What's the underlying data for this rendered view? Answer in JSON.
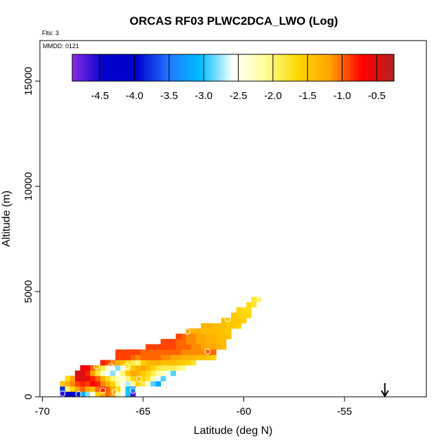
{
  "chart_data": {
    "type": "heatmap",
    "title": "ORCAS RF03 PLWC2DCA_LWO (Log)",
    "annotations": {
      "flights": "Flts: 3",
      "date": "MMDD: 0121"
    },
    "xlabel": "Latitude (deg N)",
    "ylabel": "Altitude (m)",
    "xlim": [
      -70,
      -51
    ],
    "ylim": [
      0,
      17000
    ],
    "x_ticks": [
      -70,
      -65,
      -60,
      -55
    ],
    "x_tick_labels": [
      "-70",
      "-65",
      "-60",
      "-55"
    ],
    "y_ticks": [
      0,
      5000,
      10000,
      15000
    ],
    "y_tick_labels": [
      "0",
      "5000",
      "10000",
      "15000"
    ],
    "cell_size": {
      "lat": 0.25,
      "alt": 250
    },
    "colorbar": {
      "range": [
        -4.9,
        -0.25
      ],
      "ticks": [
        -4.5,
        -4.0,
        -3.5,
        -3.0,
        -2.5,
        -2.0,
        -1.5,
        -1.0,
        -0.5
      ],
      "tick_labels": [
        "-4.5",
        "-4.0",
        "-3.5",
        "-3.0",
        "-2.5",
        "-2.0",
        "-1.5",
        "-1.0",
        "-0.5"
      ],
      "colors": [
        "#8a2be2",
        "#0000cd",
        "#0000cd",
        "#1e78ff",
        "#00bfff",
        "#ffffff",
        "#ffff99",
        "#ffd700",
        "#ffa500",
        "#ff0000",
        "#b22222"
      ]
    },
    "cells": [
      [
        -69.0,
        125,
        -4.6
      ],
      [
        -68.75,
        125,
        -4.4
      ],
      [
        -68.5,
        125,
        -4.3
      ],
      [
        -68.25,
        125,
        -3.9
      ],
      [
        -68.0,
        125,
        -3.2
      ],
      [
        -67.75,
        125,
        -2.8
      ],
      [
        -67.5,
        125,
        -2.4
      ],
      [
        -67.25,
        125,
        -1.6
      ],
      [
        -67.0,
        125,
        -1.2
      ],
      [
        -66.75,
        125,
        -1.0
      ],
      [
        -66.5,
        125,
        -1.2
      ],
      [
        -66.25,
        125,
        -2.2
      ],
      [
        -66.0,
        125,
        -2.6
      ],
      [
        -65.75,
        125,
        -3.0
      ],
      [
        -65.5,
        125,
        -4.7
      ],
      [
        -69.0,
        375,
        -3.8
      ],
      [
        -68.75,
        375,
        -2.0
      ],
      [
        -68.5,
        375,
        -1.6
      ],
      [
        -68.25,
        375,
        -1.2
      ],
      [
        -68.0,
        375,
        -1.0
      ],
      [
        -67.75,
        375,
        -1.2
      ],
      [
        -67.5,
        375,
        -1.4
      ],
      [
        -67.25,
        375,
        -1.0
      ],
      [
        -67.0,
        375,
        -0.8
      ],
      [
        -66.75,
        375,
        -1.0
      ],
      [
        -66.5,
        375,
        -1.3
      ],
      [
        -66.25,
        375,
        -1.7
      ],
      [
        -66.0,
        375,
        -2.4
      ],
      [
        -65.75,
        375,
        -3.0
      ],
      [
        -65.5,
        375,
        -3.4
      ],
      [
        -69.0,
        625,
        -1.5
      ],
      [
        -68.75,
        625,
        -1.3
      ],
      [
        -68.5,
        625,
        -1.1
      ],
      [
        -68.25,
        625,
        -0.9
      ],
      [
        -68.0,
        625,
        -0.8
      ],
      [
        -67.75,
        625,
        -0.9
      ],
      [
        -67.5,
        625,
        -0.7
      ],
      [
        -67.25,
        625,
        -0.8
      ],
      [
        -67.0,
        625,
        -1.1
      ],
      [
        -66.75,
        625,
        -1.3
      ],
      [
        -66.5,
        625,
        -1.6
      ],
      [
        -66.25,
        625,
        -2.1
      ],
      [
        -66.0,
        625,
        -2.5
      ],
      [
        -65.75,
        625,
        -2.7
      ],
      [
        -65.5,
        625,
        -2.1
      ],
      [
        -65.25,
        625,
        -1.6
      ],
      [
        -65.0,
        625,
        -1.9
      ],
      [
        -64.75,
        625,
        -2.4
      ],
      [
        -64.5,
        625,
        -2.9
      ],
      [
        -64.25,
        625,
        -3.2
      ],
      [
        -68.75,
        875,
        -1.7
      ],
      [
        -68.5,
        875,
        -1.2
      ],
      [
        -68.25,
        875,
        -0.6
      ],
      [
        -68.0,
        875,
        -0.5
      ],
      [
        -67.75,
        875,
        -0.6
      ],
      [
        -67.5,
        875,
        -0.8
      ],
      [
        -67.25,
        875,
        -1.0
      ],
      [
        -67.0,
        875,
        -1.3
      ],
      [
        -66.75,
        875,
        -1.7
      ],
      [
        -66.5,
        875,
        -2.0
      ],
      [
        -66.25,
        875,
        -2.2
      ],
      [
        -66.0,
        875,
        -2.4
      ],
      [
        -65.75,
        875,
        -2.0
      ],
      [
        -65.5,
        875,
        -1.6
      ],
      [
        -65.25,
        875,
        -1.4
      ],
      [
        -65.0,
        875,
        -1.6
      ],
      [
        -64.75,
        875,
        -1.8
      ],
      [
        -64.5,
        875,
        -2.2
      ],
      [
        -64.25,
        875,
        -2.6
      ],
      [
        -64.0,
        875,
        -2.9
      ],
      [
        -68.25,
        1125,
        -0.5
      ],
      [
        -68.0,
        1125,
        -0.5
      ],
      [
        -67.75,
        1125,
        -0.8
      ],
      [
        -67.5,
        1125,
        -1.2
      ],
      [
        -67.25,
        1125,
        -1.8
      ],
      [
        -67.0,
        1125,
        -2.3
      ],
      [
        -66.75,
        1125,
        -2.6
      ],
      [
        -66.5,
        1125,
        -2.8
      ],
      [
        -66.25,
        1125,
        -2.5
      ],
      [
        -66.0,
        1125,
        -2.0
      ],
      [
        -65.75,
        1125,
        -1.5
      ],
      [
        -65.5,
        1125,
        -1.2
      ],
      [
        -65.25,
        1125,
        -1.3
      ],
      [
        -65.0,
        1125,
        -1.5
      ],
      [
        -64.75,
        1125,
        -1.7
      ],
      [
        -64.5,
        1125,
        -1.9
      ],
      [
        -64.25,
        1125,
        -2.1
      ],
      [
        -64.0,
        1125,
        -2.3
      ],
      [
        -63.75,
        1125,
        -2.6
      ],
      [
        -63.5,
        1125,
        -2.9
      ],
      [
        -68.0,
        1375,
        -0.6
      ],
      [
        -67.75,
        1375,
        -0.7
      ],
      [
        -67.5,
        1375,
        -1.0
      ],
      [
        -67.25,
        1375,
        -1.4
      ],
      [
        -67.0,
        1375,
        -1.9
      ],
      [
        -66.75,
        1375,
        -2.3
      ],
      [
        -66.5,
        1375,
        -2.6
      ],
      [
        -66.25,
        1375,
        -2.8
      ],
      [
        -66.0,
        1375,
        -2.4
      ],
      [
        -65.75,
        1375,
        -1.9
      ],
      [
        -65.5,
        1375,
        -1.5
      ],
      [
        -65.25,
        1375,
        -1.3
      ],
      [
        -65.0,
        1375,
        -1.2
      ],
      [
        -64.75,
        1375,
        -1.4
      ],
      [
        -64.5,
        1375,
        -1.6
      ],
      [
        -64.25,
        1375,
        -1.8
      ],
      [
        -64.0,
        1375,
        -1.9
      ],
      [
        -63.75,
        1375,
        -1.9
      ],
      [
        -63.5,
        1375,
        -1.9
      ],
      [
        -63.25,
        1375,
        -2.0
      ],
      [
        -63.0,
        1375,
        -2.1
      ],
      [
        -67.0,
        1625,
        -0.8
      ],
      [
        -66.75,
        1625,
        -0.9
      ],
      [
        -66.5,
        1625,
        -1.1
      ],
      [
        -66.25,
        1625,
        -1.3
      ],
      [
        -66.0,
        1625,
        -1.5
      ],
      [
        -65.75,
        1625,
        -1.7
      ],
      [
        -65.5,
        1625,
        -1.9
      ],
      [
        -65.25,
        1625,
        -2.0
      ],
      [
        -65.0,
        1625,
        -1.6
      ],
      [
        -64.75,
        1625,
        -1.4
      ],
      [
        -64.5,
        1625,
        -1.3
      ],
      [
        -64.25,
        1625,
        -1.3
      ],
      [
        -64.0,
        1625,
        -1.4
      ],
      [
        -63.75,
        1625,
        -1.4
      ],
      [
        -63.5,
        1625,
        -1.4
      ],
      [
        -63.25,
        1625,
        -1.5
      ],
      [
        -63.0,
        1625,
        -1.5
      ],
      [
        -62.75,
        1625,
        -1.6
      ],
      [
        -62.5,
        1625,
        -1.8
      ],
      [
        -66.25,
        1875,
        -0.9
      ],
      [
        -66.0,
        1875,
        -0.9
      ],
      [
        -65.75,
        1875,
        -0.9
      ],
      [
        -65.5,
        1875,
        -1.0
      ],
      [
        -65.25,
        1875,
        -1.1
      ],
      [
        -65.0,
        1875,
        -1.0
      ],
      [
        -64.75,
        1875,
        -1.0
      ],
      [
        -64.5,
        1875,
        -1.0
      ],
      [
        -64.25,
        1875,
        -1.0
      ],
      [
        -64.0,
        1875,
        -1.1
      ],
      [
        -63.75,
        1875,
        -1.1
      ],
      [
        -63.5,
        1875,
        -1.2
      ],
      [
        -63.25,
        1875,
        -1.2
      ],
      [
        -63.0,
        1875,
        -1.3
      ],
      [
        -62.75,
        1875,
        -1.3
      ],
      [
        -62.5,
        1875,
        -1.3
      ],
      [
        -62.25,
        1875,
        -1.4
      ],
      [
        -62.0,
        1875,
        -1.4
      ],
      [
        -61.75,
        1875,
        -1.5
      ],
      [
        -61.5,
        1875,
        -1.6
      ],
      [
        -66.25,
        2125,
        -0.9
      ],
      [
        -66.0,
        2125,
        -0.9
      ],
      [
        -65.75,
        2125,
        -0.9
      ],
      [
        -65.5,
        2125,
        -0.9
      ],
      [
        -65.25,
        2125,
        -0.9
      ],
      [
        -65.0,
        2125,
        -1.0
      ],
      [
        -64.75,
        2125,
        -1.0
      ],
      [
        -64.5,
        2125,
        -1.0
      ],
      [
        -64.25,
        2125,
        -1.0
      ],
      [
        -64.0,
        2125,
        -1.0
      ],
      [
        -63.75,
        2125,
        -1.0
      ],
      [
        -63.5,
        2125,
        -1.0
      ],
      [
        -63.25,
        2125,
        -1.0
      ],
      [
        -63.0,
        2125,
        -1.1
      ],
      [
        -62.75,
        2125,
        -1.1
      ],
      [
        -62.5,
        2125,
        -1.1
      ],
      [
        -62.25,
        2125,
        -1.1
      ],
      [
        -62.0,
        2125,
        -1.1
      ],
      [
        -61.75,
        2125,
        -1.0
      ],
      [
        -61.5,
        2125,
        -1.0
      ],
      [
        -64.75,
        2375,
        -0.9
      ],
      [
        -64.5,
        2375,
        -0.9
      ],
      [
        -64.25,
        2375,
        -0.9
      ],
      [
        -64.0,
        2375,
        -0.9
      ],
      [
        -63.75,
        2375,
        -0.9
      ],
      [
        -63.5,
        2375,
        -0.9
      ],
      [
        -63.25,
        2375,
        -1.0
      ],
      [
        -63.0,
        2375,
        -1.0
      ],
      [
        -62.75,
        2375,
        -1.0
      ],
      [
        -62.5,
        2375,
        -1.1
      ],
      [
        -62.25,
        2375,
        -1.1
      ],
      [
        -62.0,
        2375,
        -1.2
      ],
      [
        -61.75,
        2375,
        -1.2
      ],
      [
        -61.5,
        2375,
        -1.2
      ],
      [
        -61.25,
        2375,
        -1.3
      ],
      [
        -61.0,
        2375,
        -1.4
      ],
      [
        -64.0,
        2625,
        -0.9
      ],
      [
        -63.75,
        2625,
        -0.9
      ],
      [
        -63.5,
        2625,
        -0.9
      ],
      [
        -63.25,
        2625,
        -1.0
      ],
      [
        -63.0,
        2625,
        -1.0
      ],
      [
        -62.75,
        2625,
        -1.1
      ],
      [
        -62.5,
        2625,
        -1.1
      ],
      [
        -62.25,
        2625,
        -1.2
      ],
      [
        -62.0,
        2625,
        -1.2
      ],
      [
        -61.75,
        2625,
        -1.3
      ],
      [
        -61.5,
        2625,
        -1.3
      ],
      [
        -61.25,
        2625,
        -1.4
      ],
      [
        -61.0,
        2625,
        -1.4
      ],
      [
        -63.25,
        2875,
        -0.9
      ],
      [
        -63.0,
        2875,
        -1.0
      ],
      [
        -62.75,
        2875,
        -1.1
      ],
      [
        -62.5,
        2875,
        -1.1
      ],
      [
        -62.25,
        2875,
        -1.2
      ],
      [
        -62.0,
        2875,
        -1.2
      ],
      [
        -61.75,
        2875,
        -1.3
      ],
      [
        -61.5,
        2875,
        -1.3
      ],
      [
        -61.25,
        2875,
        -1.4
      ],
      [
        -61.0,
        2875,
        -1.4
      ],
      [
        -60.75,
        2875,
        -1.5
      ],
      [
        -62.75,
        3125,
        -1.2
      ],
      [
        -62.5,
        3125,
        -1.3
      ],
      [
        -62.25,
        3125,
        -1.3
      ],
      [
        -62.0,
        3125,
        -1.4
      ],
      [
        -61.75,
        3125,
        -1.4
      ],
      [
        -61.5,
        3125,
        -1.4
      ],
      [
        -61.25,
        3125,
        -1.4
      ],
      [
        -61.0,
        3125,
        -1.5
      ],
      [
        -60.75,
        3125,
        -1.5
      ],
      [
        -62.0,
        3375,
        -1.3
      ],
      [
        -61.75,
        3375,
        -1.3
      ],
      [
        -61.5,
        3375,
        -1.4
      ],
      [
        -61.25,
        3375,
        -1.4
      ],
      [
        -61.0,
        3375,
        -1.4
      ],
      [
        -60.75,
        3375,
        -1.5
      ],
      [
        -60.5,
        3375,
        -1.5
      ],
      [
        -60.25,
        3375,
        -1.6
      ],
      [
        -61.0,
        3625,
        -1.4
      ],
      [
        -60.75,
        3625,
        -1.5
      ],
      [
        -60.5,
        3625,
        -1.5
      ],
      [
        -60.25,
        3625,
        -1.5
      ],
      [
        -60.0,
        3625,
        -1.6
      ],
      [
        -60.5,
        3875,
        -1.5
      ],
      [
        -60.25,
        3875,
        -1.6
      ],
      [
        -60.0,
        3875,
        -1.6
      ],
      [
        -59.75,
        3875,
        -1.7
      ],
      [
        -60.25,
        4125,
        -1.6
      ],
      [
        -60.0,
        4125,
        -1.7
      ],
      [
        -59.75,
        4125,
        -1.7
      ],
      [
        -59.75,
        4375,
        -1.7
      ],
      [
        -59.5,
        4375,
        -1.8
      ],
      [
        -59.5,
        4625,
        -1.8
      ],
      [
        -59.25,
        4625,
        -2.0
      ]
    ],
    "markers": [
      [
        -69.0,
        150
      ],
      [
        -68.2,
        120
      ],
      [
        -67.0,
        300
      ],
      [
        -66.4,
        230
      ],
      [
        -65.5,
        300
      ],
      [
        -66.6,
        1450
      ],
      [
        -65.8,
        1450
      ],
      [
        -67.3,
        1450
      ],
      [
        -65.2,
        850
      ],
      [
        -62.8,
        3100
      ],
      [
        -61.8,
        2150
      ],
      [
        -60.8,
        3700
      ]
    ],
    "arrow": {
      "lat": -53,
      "alt_top": 650
    }
  }
}
